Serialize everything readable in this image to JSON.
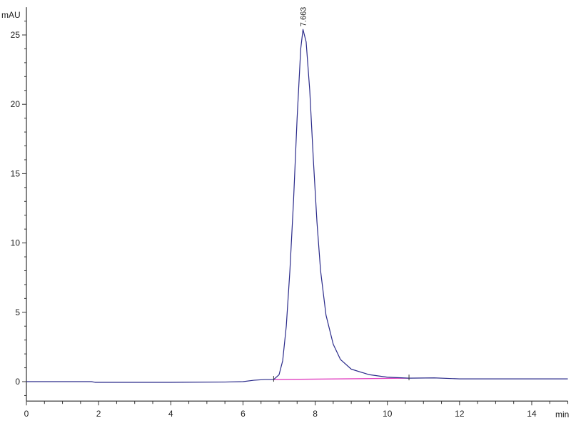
{
  "chart_data": {
    "type": "line",
    "title": "",
    "xlabel": "min",
    "ylabel": "mAU",
    "xlim": [
      0,
      15
    ],
    "ylim": [
      -1.4,
      27
    ],
    "x_ticks": [
      0,
      2,
      4,
      6,
      8,
      10,
      12,
      14
    ],
    "x_tick_labels": [
      "0",
      "2",
      "4",
      "6",
      "8",
      "10",
      "12",
      "14"
    ],
    "y_ticks": [
      0,
      5,
      10,
      15,
      20,
      25
    ],
    "y_tick_labels": [
      "0",
      "5",
      "10",
      "15",
      "20",
      "25"
    ],
    "grid": false,
    "legend": "none",
    "series": [
      {
        "color": "#2a2a8a",
        "points": [
          [
            0,
            0
          ],
          [
            1.8,
            0
          ],
          [
            1.9,
            -0.05
          ],
          [
            2.0,
            -0.05
          ],
          [
            4,
            -0.05
          ],
          [
            5.5,
            -0.03
          ],
          [
            6.0,
            0
          ],
          [
            6.3,
            0.1
          ],
          [
            6.6,
            0.15
          ],
          [
            6.85,
            0.15
          ],
          [
            7.0,
            0.5
          ],
          [
            7.1,
            1.5
          ],
          [
            7.2,
            4
          ],
          [
            7.3,
            8
          ],
          [
            7.4,
            13
          ],
          [
            7.5,
            19
          ],
          [
            7.6,
            24
          ],
          [
            7.663,
            25.4
          ],
          [
            7.75,
            24.5
          ],
          [
            7.85,
            21
          ],
          [
            7.95,
            16
          ],
          [
            8.05,
            11.5
          ],
          [
            8.15,
            8
          ],
          [
            8.3,
            4.8
          ],
          [
            8.5,
            2.7
          ],
          [
            8.7,
            1.6
          ],
          [
            9.0,
            0.9
          ],
          [
            9.5,
            0.5
          ],
          [
            10.0,
            0.32
          ],
          [
            10.6,
            0.25
          ],
          [
            11.3,
            0.27
          ],
          [
            12,
            0.2
          ],
          [
            13,
            0.2
          ],
          [
            14,
            0.2
          ],
          [
            15,
            0.2
          ]
        ]
      }
    ],
    "baseline": {
      "color": "#e040c0",
      "points": [
        [
          6.85,
          0.15
        ],
        [
          10.6,
          0.25
        ]
      ]
    },
    "integration_marks": [
      6.85,
      10.6
    ],
    "annotations": [
      {
        "x": 7.663,
        "y": 25.4,
        "text": "7.663"
      }
    ]
  }
}
